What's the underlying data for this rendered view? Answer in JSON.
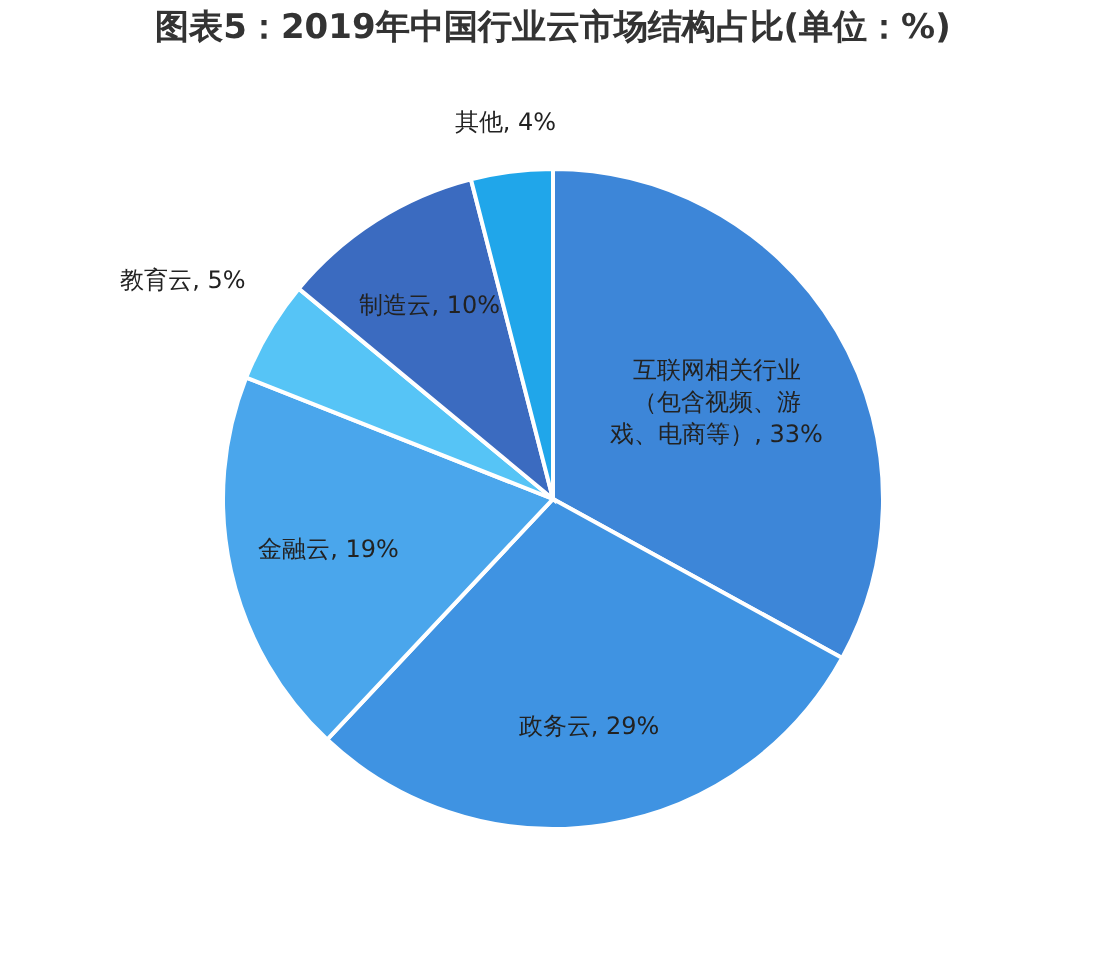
{
  "chart_data": {
    "type": "pie",
    "title": "图表5：2019年中国行业云市场结构占比(单位：%)",
    "categories": [
      "互联网相关行业（包含视频、游戏、电商等）",
      "政务云",
      "金融云",
      "教育云",
      "制造云",
      "其他"
    ],
    "values": [
      33,
      29,
      19,
      5,
      10,
      4
    ],
    "colors": [
      "#3d86d8",
      "#3f93e2",
      "#4aa6ec",
      "#56c4f6",
      "#3b6bc0",
      "#20a6ea"
    ],
    "value_labels": [
      "33%",
      "29%",
      "19%",
      "5%",
      "10%",
      "4%"
    ],
    "legend": false
  }
}
